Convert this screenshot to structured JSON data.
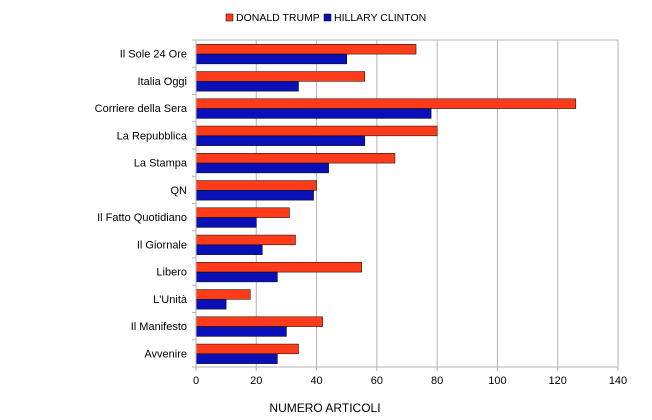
{
  "chart_data": {
    "type": "bar",
    "orientation": "horizontal",
    "categories": [
      "Il Sole 24 Ore",
      "Italia Oggi",
      "Corriere della Sera",
      "La Repubblica",
      "La Stampa",
      "QN",
      "Il Fatto Quotidiano",
      "Il Giornale",
      "Libero",
      "L'Unità",
      "Il Manifesto",
      "Avvenire"
    ],
    "series": [
      {
        "name": "DONALD TRUMP",
        "color": "#ff3b1a",
        "values": [
          73,
          56,
          126,
          80,
          66,
          40,
          31,
          33,
          55,
          18,
          42,
          34
        ]
      },
      {
        "name": "HILLARY CLINTON",
        "color": "#0a10b8",
        "values": [
          50,
          34,
          78,
          56,
          44,
          39,
          20,
          22,
          27,
          10,
          30,
          27
        ]
      }
    ],
    "xlabel": "NUMERO ARTICOLI",
    "ylabel": "",
    "title": "",
    "xlim": [
      0,
      140
    ],
    "xticks": [
      0,
      20,
      40,
      60,
      80,
      100,
      120,
      140
    ],
    "grid": "vertical",
    "legend": "top-center"
  }
}
